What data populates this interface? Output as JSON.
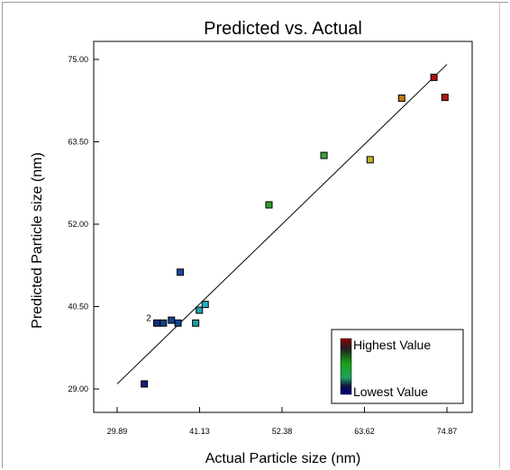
{
  "chart_data": {
    "type": "scatter",
    "title": "Predicted vs. Actual",
    "xlabel": "Actual Particle size (nm)",
    "ylabel": "Predicted  Particle size (nm)",
    "xlim": [
      29.89,
      74.87
    ],
    "ylim": [
      29.0,
      75.0
    ],
    "x_ticks": [
      "29.89",
      "41.13",
      "52.38",
      "63.62",
      "74.87"
    ],
    "y_ticks": [
      "29.00",
      "40.50",
      "52.00",
      "63.50",
      "75.00"
    ],
    "grid": false,
    "legend": {
      "placement": "bottom-right",
      "high_label": "Highest Value",
      "low_label": "Lowest Value",
      "high_color": "#8b0000",
      "low_color": "#000080"
    },
    "fit_line": {
      "x": [
        29.89,
        74.87
      ],
      "y": [
        29.7,
        74.3
      ]
    },
    "annotations": [
      {
        "text": "2",
        "x": 34.6,
        "y": 38.6
      }
    ],
    "points": [
      {
        "x": 73.1,
        "y": 72.5,
        "color": "#b01010"
      },
      {
        "x": 74.6,
        "y": 69.7,
        "color": "#b01818"
      },
      {
        "x": 68.7,
        "y": 69.6,
        "color": "#c07810"
      },
      {
        "x": 64.4,
        "y": 61.0,
        "color": "#b8b820"
      },
      {
        "x": 58.1,
        "y": 61.6,
        "color": "#40a040"
      },
      {
        "x": 50.6,
        "y": 54.7,
        "color": "#30a030"
      },
      {
        "x": 33.6,
        "y": 29.7,
        "color": "#102080"
      },
      {
        "x": 35.3,
        "y": 38.2,
        "color": "#103080"
      },
      {
        "x": 36.2,
        "y": 38.2,
        "color": "#104080"
      },
      {
        "x": 37.3,
        "y": 38.6,
        "color": "#104890"
      },
      {
        "x": 38.2,
        "y": 38.2,
        "color": "#104890"
      },
      {
        "x": 38.5,
        "y": 45.3,
        "color": "#1848a0"
      },
      {
        "x": 40.6,
        "y": 38.2,
        "color": "#18a0a0"
      },
      {
        "x": 41.1,
        "y": 40.0,
        "color": "#20a0b0"
      },
      {
        "x": 41.9,
        "y": 40.8,
        "color": "#20b0c0"
      }
    ]
  }
}
